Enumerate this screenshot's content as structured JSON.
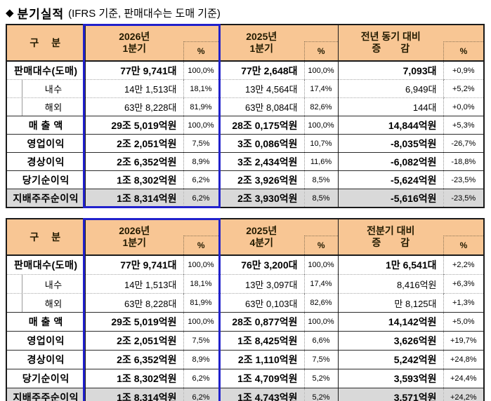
{
  "title": {
    "bullet": "◆",
    "main": "분기실적",
    "sub": "(IFRS 기준, 판매대수는 도매 기준)"
  },
  "colors": {
    "header_bg": "#F8C694",
    "total_row_bg": "#D9D9D9",
    "highlight_border": "#2121CC"
  },
  "tables": [
    {
      "header": {
        "gubun": "구　분",
        "period1": "2026년\n1분기",
        "pct1": "%",
        "period2": "2025년\n1분기",
        "pct2": "%",
        "change": "전년 동기 대비\n증　　감",
        "pct3": "%"
      },
      "rows": [
        {
          "style": "major",
          "label": "판매대수(도매)",
          "v1": "77만 9,741대",
          "p1": "100,0%",
          "v2": "77만 2,648대",
          "p2": "100,0%",
          "v3": "7,093대",
          "p3": "+0,9%"
        },
        {
          "style": "sub",
          "label": "내수",
          "v1": "14만 1,513대",
          "p1": "18,1%",
          "v2": "13만 4,564대",
          "p2": "17,4%",
          "v3": "6,949대",
          "p3": "+5,2%"
        },
        {
          "style": "sub",
          "label": "해외",
          "v1": "63만 8,228대",
          "p1": "81,9%",
          "v2": "63만 8,084대",
          "p2": "82,6%",
          "v3": "144대",
          "p3": "+0,0%"
        },
        {
          "style": "major",
          "label": "매 출 액",
          "v1": "29조 5,019억원",
          "p1": "100,0%",
          "v2": "28조 0,175억원",
          "p2": "100,0%",
          "v3": "14,844억원",
          "p3": "+5,3%"
        },
        {
          "style": "major",
          "label": "영업이익",
          "v1": "2조 2,051억원",
          "p1": "7,5%",
          "v2": "3조 0,086억원",
          "p2": "10,7%",
          "v3": "-8,035억원",
          "p3": "-26,7%"
        },
        {
          "style": "major",
          "label": "경상이익",
          "v1": "2조 6,352억원",
          "p1": "8,9%",
          "v2": "3조 2,434억원",
          "p2": "11,6%",
          "v3": "-6,082억원",
          "p3": "-18,8%"
        },
        {
          "style": "major",
          "label": "당기순이익",
          "v1": "1조 8,302억원",
          "p1": "6,2%",
          "v2": "2조 3,926억원",
          "p2": "8,5%",
          "v3": "-5,624억원",
          "p3": "-23,5%"
        },
        {
          "style": "total",
          "label": "지배주주순이익",
          "v1": "1조 8,314억원",
          "p1": "6,2%",
          "v2": "2조 3,930억원",
          "p2": "8,5%",
          "v3": "-5,616억원",
          "p3": "-23,5%"
        }
      ]
    },
    {
      "header": {
        "gubun": "구　분",
        "period1": "2026년\n1분기",
        "pct1": "%",
        "period2": "2025년\n4분기",
        "pct2": "%",
        "change": "전분기 대비\n증　　감",
        "pct3": "%"
      },
      "rows": [
        {
          "style": "major",
          "label": "판매대수(도매)",
          "v1": "77만 9,741대",
          "p1": "100,0%",
          "v2": "76만 3,200대",
          "p2": "100,0%",
          "v3": "1만 6,541대",
          "p3": "+2,2%"
        },
        {
          "style": "sub",
          "label": "내수",
          "v1": "14만 1,513대",
          "p1": "18,1%",
          "v2": "13만 3,097대",
          "p2": "17,4%",
          "v3": "8,416억원",
          "p3": "+6,3%"
        },
        {
          "style": "sub",
          "label": "해외",
          "v1": "63만 8,228대",
          "p1": "81,9%",
          "v2": "63만 0,103대",
          "p2": "82,6%",
          "v3": "만 8,125대",
          "p3": "+1,3%"
        },
        {
          "style": "major",
          "label": "매 출 액",
          "v1": "29조 5,019억원",
          "p1": "100,0%",
          "v2": "28조 0,877억원",
          "p2": "100,0%",
          "v3": "14,142억원",
          "p3": "+5,0%"
        },
        {
          "style": "major",
          "label": "영업이익",
          "v1": "2조 2,051억원",
          "p1": "7,5%",
          "v2": "1조 8,425억원",
          "p2": "6,6%",
          "v3": "3,626억원",
          "p3": "+19,7%"
        },
        {
          "style": "major",
          "label": "경상이익",
          "v1": "2조 6,352억원",
          "p1": "8,9%",
          "v2": "2조 1,110억원",
          "p2": "7,5%",
          "v3": "5,242억원",
          "p3": "+24,8%"
        },
        {
          "style": "major",
          "label": "당기순이익",
          "v1": "1조 8,302억원",
          "p1": "6,2%",
          "v2": "1조 4,709억원",
          "p2": "5,2%",
          "v3": "3,593억원",
          "p3": "+24,4%"
        },
        {
          "style": "total",
          "label": "지배주주순이익",
          "v1": "1조 8,314억원",
          "p1": "6,2%",
          "v2": "1조 4,743억원",
          "p2": "5,2%",
          "v3": "3,571억원",
          "p3": "+24,2%"
        }
      ]
    }
  ]
}
